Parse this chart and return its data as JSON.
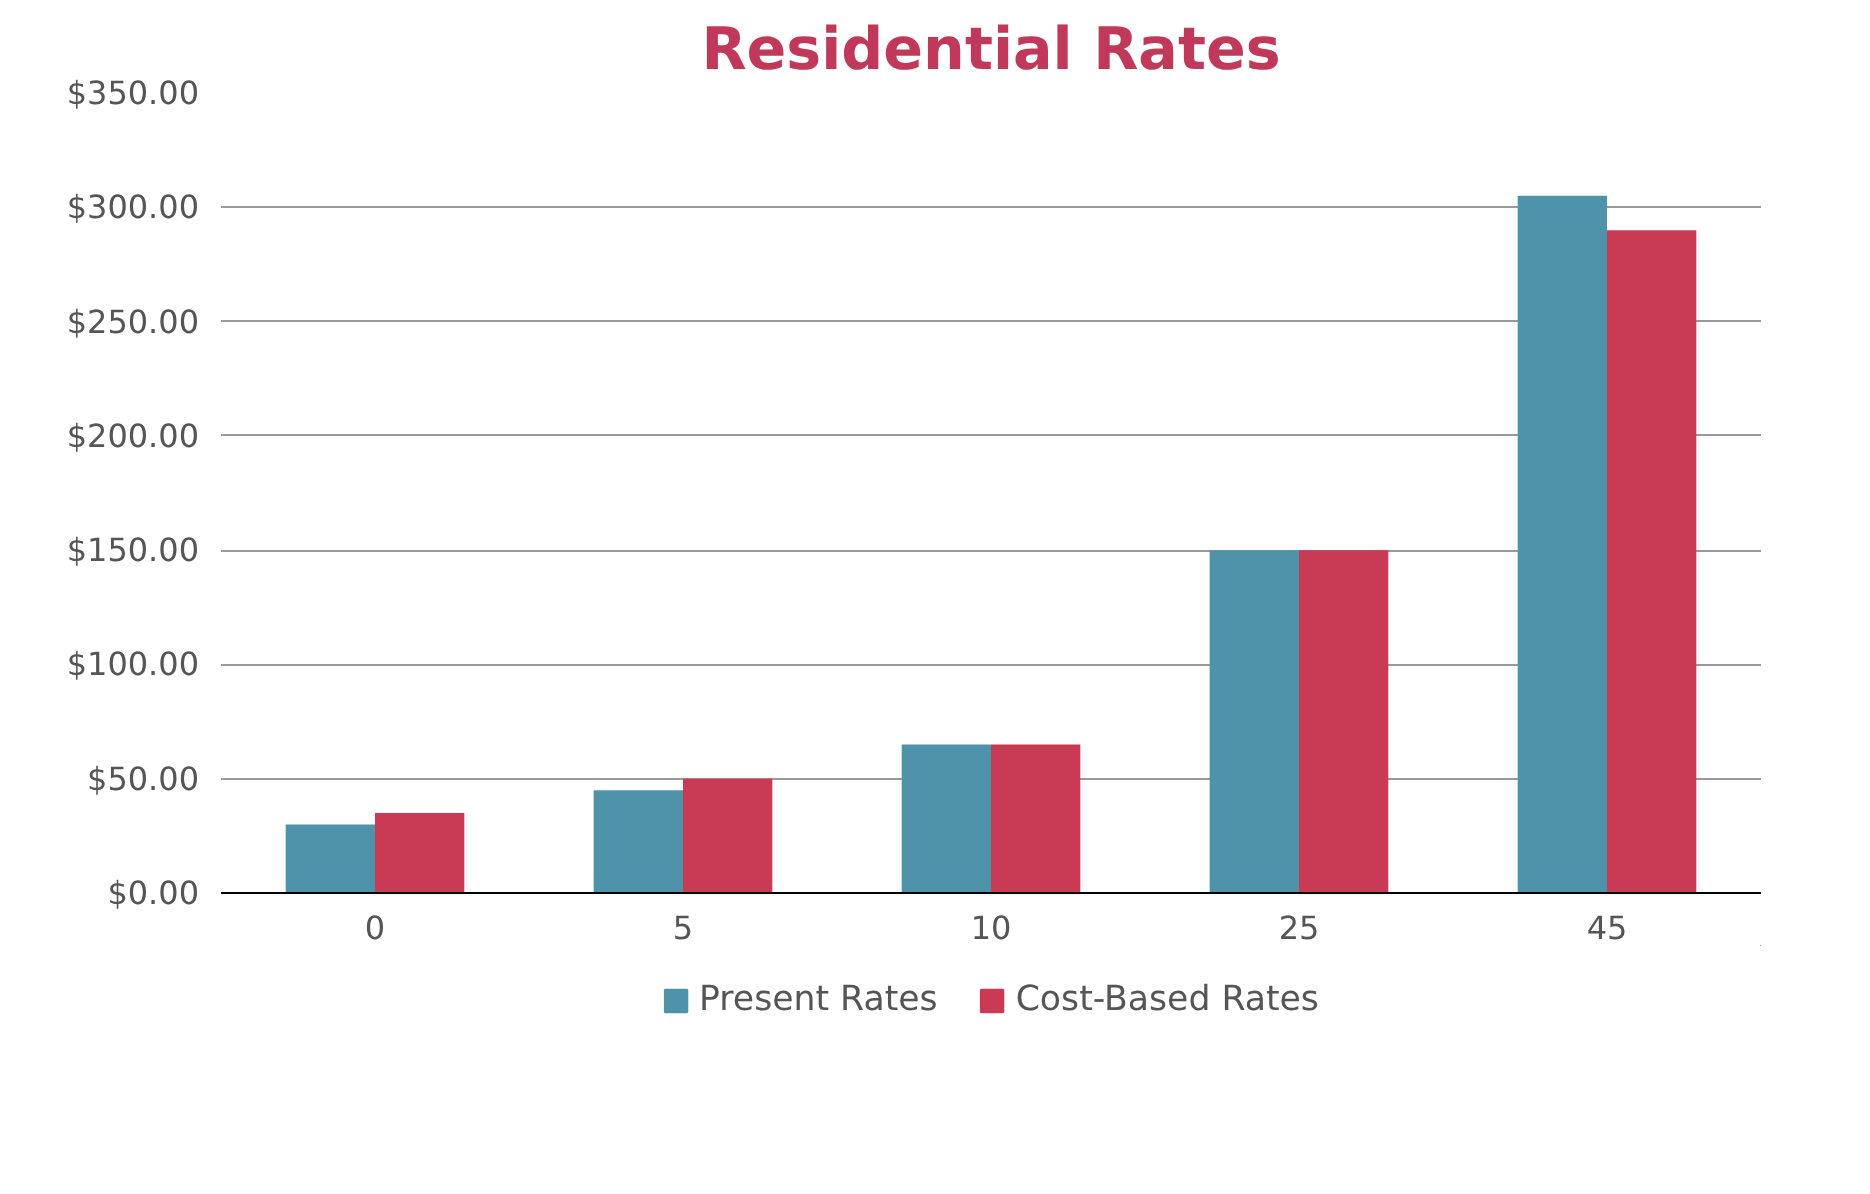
{
  "chart_data": {
    "type": "bar",
    "title": "Residential Rates",
    "categories": [
      "0",
      "5",
      "10",
      "25",
      "45"
    ],
    "series": [
      {
        "name": "Present Rates",
        "color": "#4f93ab",
        "values": [
          30,
          45,
          65,
          150,
          305
        ]
      },
      {
        "name": "Cost-Based Rates",
        "color": "#c93a55",
        "values": [
          35,
          50,
          65,
          150,
          290
        ]
      }
    ],
    "ylim": [
      0,
      350
    ],
    "yticks": [
      {
        "value": 0,
        "label": "$0.00"
      },
      {
        "value": 50,
        "label": "$50.00"
      },
      {
        "value": 100,
        "label": "$100.00"
      },
      {
        "value": 150,
        "label": "$150.00"
      },
      {
        "value": 200,
        "label": "$200.00"
      },
      {
        "value": 250,
        "label": "$250.00"
      },
      {
        "value": 300,
        "label": "$300.00"
      },
      {
        "value": 350,
        "label": "$350.00"
      }
    ],
    "grid": "y",
    "legend": "bottom"
  }
}
